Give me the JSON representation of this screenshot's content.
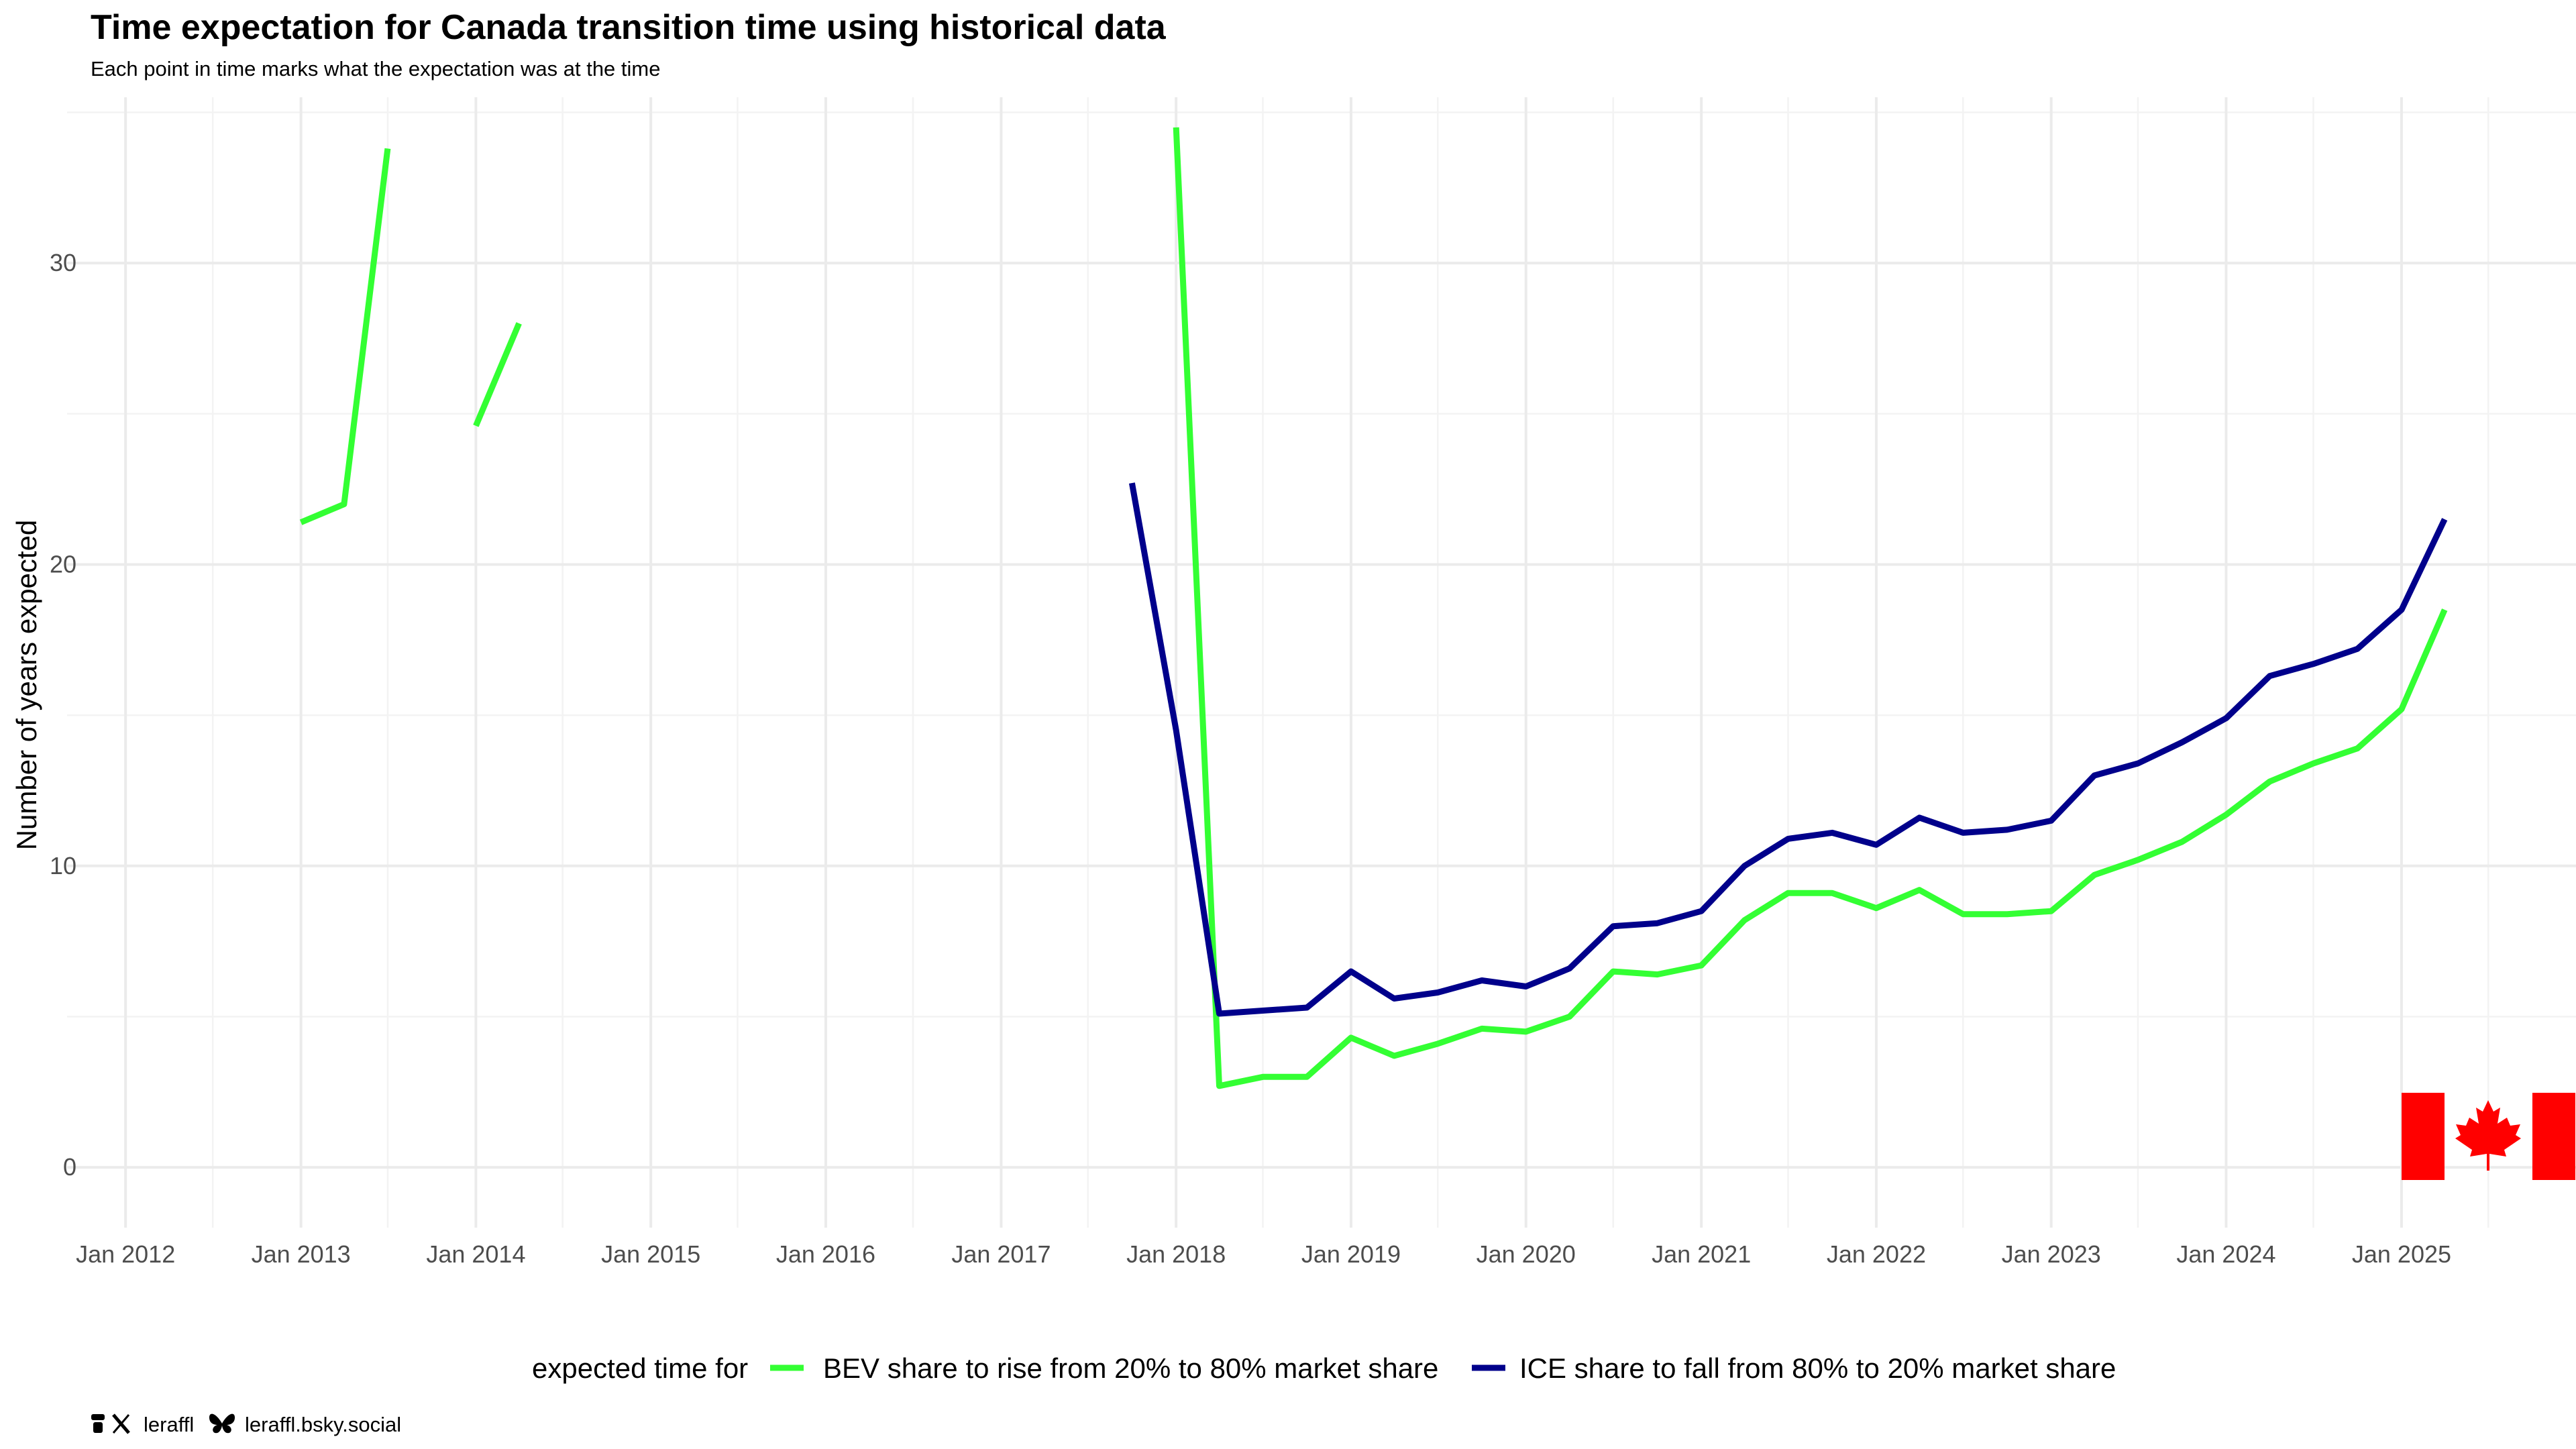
{
  "colors": {
    "bev": "#33ff33",
    "ice": "#00008b",
    "flag_red": "#ff0000",
    "grid_major": "#ebebeb",
    "grid_minor": "#f3f3f3",
    "tick_text": "#4d4d4d"
  },
  "caption": {
    "icons": [
      "thread-icon",
      "x-icon",
      "butterfly-icon"
    ],
    "handle_x": "leraffl",
    "handle_bsky": "leraffl.bsky.social"
  },
  "chart_data": {
    "type": "line",
    "title": "Time expectation for Canada transition time using historical data",
    "subtitle": "Each point in time marks what the expectation was at the time",
    "xlabel": "",
    "ylabel": "Number of years expected",
    "xlim": [
      "2011-09-01",
      "2025-12-31"
    ],
    "ylim": [
      -2.0,
      35.5
    ],
    "x_ticks": [
      {
        "date": "2012-01-01",
        "label": "Jan 2012"
      },
      {
        "date": "2013-01-01",
        "label": "Jan 2013"
      },
      {
        "date": "2014-01-01",
        "label": "Jan 2014"
      },
      {
        "date": "2015-01-01",
        "label": "Jan 2015"
      },
      {
        "date": "2016-01-01",
        "label": "Jan 2016"
      },
      {
        "date": "2017-01-01",
        "label": "Jan 2017"
      },
      {
        "date": "2018-01-01",
        "label": "Jan 2018"
      },
      {
        "date": "2019-01-01",
        "label": "Jan 2019"
      },
      {
        "date": "2020-01-01",
        "label": "Jan 2020"
      },
      {
        "date": "2021-01-01",
        "label": "Jan 2021"
      },
      {
        "date": "2022-01-01",
        "label": "Jan 2022"
      },
      {
        "date": "2023-01-01",
        "label": "Jan 2023"
      },
      {
        "date": "2024-01-01",
        "label": "Jan 2024"
      },
      {
        "date": "2025-01-01",
        "label": "Jan 2025"
      }
    ],
    "y_ticks": [
      0,
      10,
      20,
      30
    ],
    "grid": true,
    "legend": {
      "position": "bottom",
      "title": "expected time for"
    },
    "series": [
      {
        "name": "BEV share to rise from 20% to 80% market share",
        "color_key": "bev",
        "segments": [
          [
            {
              "x": "2013-01-01",
              "y": 21.4
            },
            {
              "x": "2013-04-01",
              "y": 22.0
            },
            {
              "x": "2013-07-01",
              "y": 33.8
            }
          ],
          [
            {
              "x": "2014-01-01",
              "y": 24.6
            },
            {
              "x": "2014-04-01",
              "y": 28.0
            }
          ],
          [
            {
              "x": "2018-01-01",
              "y": 34.5
            },
            {
              "x": "2018-04-01",
              "y": 2.7
            },
            {
              "x": "2018-07-01",
              "y": 3.0
            },
            {
              "x": "2018-10-01",
              "y": 3.0
            },
            {
              "x": "2019-01-01",
              "y": 4.3
            },
            {
              "x": "2019-04-01",
              "y": 3.7
            },
            {
              "x": "2019-07-01",
              "y": 4.1
            },
            {
              "x": "2019-10-01",
              "y": 4.6
            },
            {
              "x": "2020-01-01",
              "y": 4.5
            },
            {
              "x": "2020-04-01",
              "y": 5.0
            },
            {
              "x": "2020-07-01",
              "y": 6.5
            },
            {
              "x": "2020-10-01",
              "y": 6.4
            },
            {
              "x": "2021-01-01",
              "y": 6.7
            },
            {
              "x": "2021-04-01",
              "y": 8.2
            },
            {
              "x": "2021-07-01",
              "y": 9.1
            },
            {
              "x": "2021-10-01",
              "y": 9.1
            },
            {
              "x": "2022-01-01",
              "y": 8.6
            },
            {
              "x": "2022-04-01",
              "y": 9.2
            },
            {
              "x": "2022-07-01",
              "y": 8.4
            },
            {
              "x": "2022-10-01",
              "y": 8.4
            },
            {
              "x": "2023-01-01",
              "y": 8.5
            },
            {
              "x": "2023-04-01",
              "y": 9.7
            },
            {
              "x": "2023-07-01",
              "y": 10.2
            },
            {
              "x": "2023-10-01",
              "y": 10.8
            },
            {
              "x": "2024-01-01",
              "y": 11.7
            },
            {
              "x": "2024-04-01",
              "y": 12.8
            },
            {
              "x": "2024-07-01",
              "y": 13.4
            },
            {
              "x": "2024-10-01",
              "y": 13.9
            },
            {
              "x": "2025-01-01",
              "y": 15.2
            },
            {
              "x": "2025-04-01",
              "y": 18.5
            }
          ]
        ]
      },
      {
        "name": "ICE share to fall from 80% to 20% market share",
        "color_key": "ice",
        "segments": [
          [
            {
              "x": "2017-10-01",
              "y": 22.7
            },
            {
              "x": "2018-01-01",
              "y": 14.5
            },
            {
              "x": "2018-04-01",
              "y": 5.1
            },
            {
              "x": "2018-07-01",
              "y": 5.2
            },
            {
              "x": "2018-10-01",
              "y": 5.3
            },
            {
              "x": "2019-01-01",
              "y": 6.5
            },
            {
              "x": "2019-04-01",
              "y": 5.6
            },
            {
              "x": "2019-07-01",
              "y": 5.8
            },
            {
              "x": "2019-10-01",
              "y": 6.2
            },
            {
              "x": "2020-01-01",
              "y": 6.0
            },
            {
              "x": "2020-04-01",
              "y": 6.6
            },
            {
              "x": "2020-07-01",
              "y": 8.0
            },
            {
              "x": "2020-10-01",
              "y": 8.1
            },
            {
              "x": "2021-01-01",
              "y": 8.5
            },
            {
              "x": "2021-04-01",
              "y": 10.0
            },
            {
              "x": "2021-07-01",
              "y": 10.9
            },
            {
              "x": "2021-10-01",
              "y": 11.1
            },
            {
              "x": "2022-01-01",
              "y": 10.7
            },
            {
              "x": "2022-04-01",
              "y": 11.6
            },
            {
              "x": "2022-07-01",
              "y": 11.1
            },
            {
              "x": "2022-10-01",
              "y": 11.2
            },
            {
              "x": "2023-01-01",
              "y": 11.5
            },
            {
              "x": "2023-04-01",
              "y": 13.0
            },
            {
              "x": "2023-07-01",
              "y": 13.4
            },
            {
              "x": "2023-10-01",
              "y": 14.1
            },
            {
              "x": "2024-01-01",
              "y": 14.9
            },
            {
              "x": "2024-04-01",
              "y": 16.3
            },
            {
              "x": "2024-07-01",
              "y": 16.7
            },
            {
              "x": "2024-10-01",
              "y": 17.2
            },
            {
              "x": "2025-01-01",
              "y": 18.5
            },
            {
              "x": "2025-04-01",
              "y": 21.5
            }
          ]
        ]
      }
    ]
  }
}
